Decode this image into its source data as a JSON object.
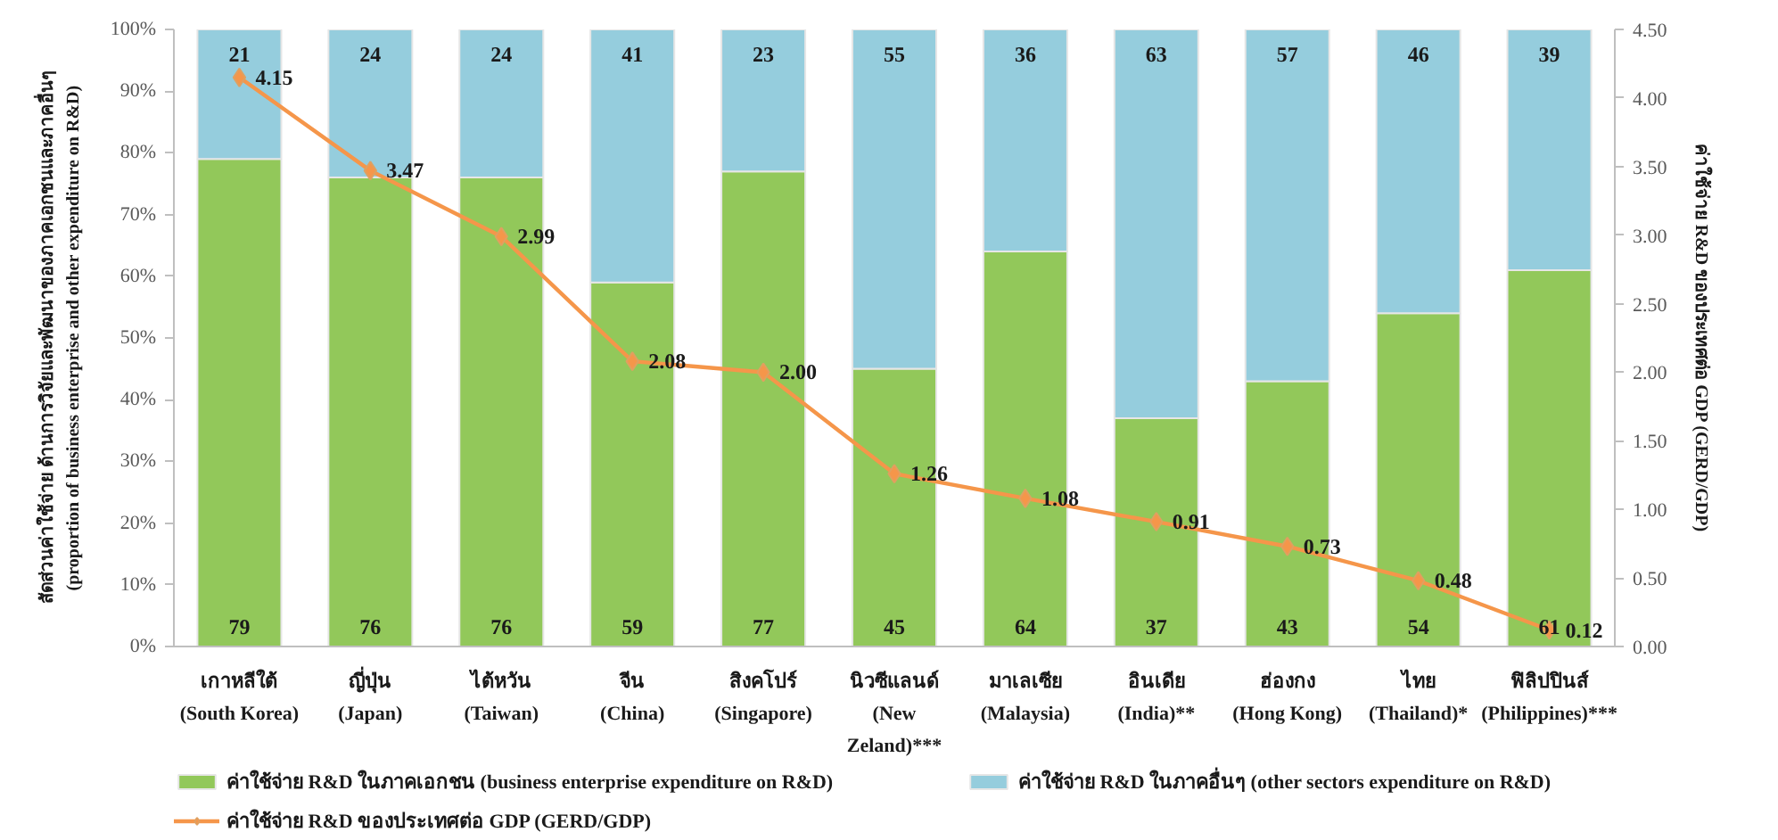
{
  "chart_data": {
    "type": "bar",
    "stacked": true,
    "categories": [
      "เกาหลีใต้\n(South Korea)",
      "ญี่ปุ่น\n(Japan)",
      "ไต้หวัน\n(Taiwan)",
      "จีน\n(China)",
      "สิงคโปร์\n(Singapore)",
      "นิวซีแลนด์\n(New\nZeland)***",
      "มาเลเซีย\n(Malaysia)",
      "อินเดีย\n(India)**",
      "ฮ่องกง\n(Hong Kong)",
      "ไทย\n(Thailand)*",
      "ฟิลิปปินส์\n(Philippines)***"
    ],
    "ylabel": "สัดส่วนค่าใช้จ่าย ด้านการวิจัยและพัฒนาของภาคเอกชนและภาคอื่นๆ\n(proportion of business enterprise and other expenditure on R&D)",
    "y2label": "ค่าใช้จ่าย R&D ของประเทศต่อ GDP (GERD/GDP)",
    "ylim": [
      0,
      100
    ],
    "yticks": [
      {
        "value": 0,
        "label": "0%"
      },
      {
        "value": 10,
        "label": "10%"
      },
      {
        "value": 20,
        "label": "20%"
      },
      {
        "value": 30,
        "label": "30%"
      },
      {
        "value": 40,
        "label": "40%"
      },
      {
        "value": 50,
        "label": "50%"
      },
      {
        "value": 60,
        "label": "60%"
      },
      {
        "value": 70,
        "label": "70%"
      },
      {
        "value": 80,
        "label": "80%"
      },
      {
        "value": 90,
        "label": "90%"
      },
      {
        "value": 100,
        "label": "100%"
      }
    ],
    "y2lim": [
      0,
      4.5
    ],
    "y2ticks": [
      {
        "value": 0,
        "label": "0.00"
      },
      {
        "value": 0.5,
        "label": "0.50"
      },
      {
        "value": 1,
        "label": "1.00"
      },
      {
        "value": 1.5,
        "label": "1.50"
      },
      {
        "value": 2,
        "label": "2.00"
      },
      {
        "value": 2.5,
        "label": "2.50"
      },
      {
        "value": 3,
        "label": "3.00"
      },
      {
        "value": 3.5,
        "label": "3.50"
      },
      {
        "value": 4,
        "label": "4.00"
      },
      {
        "value": 4.5,
        "label": "4.50"
      }
    ],
    "series": [
      {
        "name": "ค่าใช้จ่าย R&D ในภาคเอกชน (business enterprise expenditure on R&D)",
        "color": "#92c85a",
        "values": [
          79,
          76,
          76,
          59,
          77,
          45,
          64,
          37,
          43,
          54,
          61
        ],
        "value_labels": [
          "79",
          "76",
          "76",
          "59",
          "77",
          "45",
          "64",
          "37",
          "43",
          "54",
          "61"
        ]
      },
      {
        "name": "ค่าใช้จ่าย R&D ในภาคอื่นๆ (other sectors expenditure on R&D)",
        "color": "#95cddd",
        "values": [
          21,
          24,
          24,
          41,
          23,
          55,
          36,
          63,
          57,
          46,
          39
        ],
        "value_labels": [
          "21",
          "24",
          "24",
          "41",
          "23",
          "55",
          "36",
          "63",
          "57",
          "46",
          "39"
        ]
      },
      {
        "name": "ค่าใช้จ่าย R&D ของประเทศต่อ GDP (GERD/GDP)",
        "type": "line",
        "axis": "y2",
        "color": "#f5964a",
        "values": [
          4.15,
          3.47,
          2.99,
          2.08,
          2.0,
          1.26,
          1.08,
          0.91,
          0.73,
          0.48,
          0.12
        ],
        "value_labels": [
          "4.15",
          "3.47",
          "2.99",
          "2.08",
          "2.00",
          "1.26",
          "1.08",
          "0.91",
          "0.73",
          "0.48",
          "0.12"
        ]
      }
    ],
    "marker": "diamond",
    "line_style": "solid",
    "grid": false,
    "legend": "bottom"
  }
}
